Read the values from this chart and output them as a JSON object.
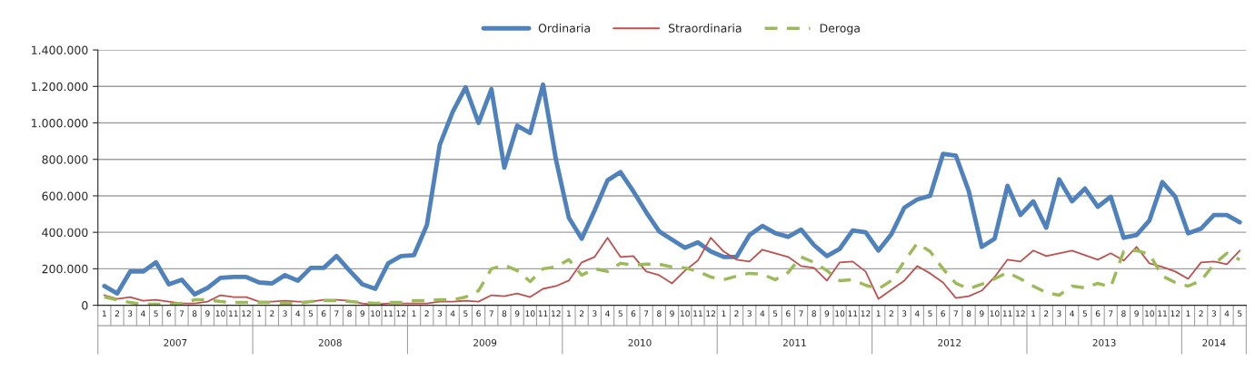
{
  "chart_data": {
    "type": "line",
    "categories": [
      "1",
      "2",
      "3",
      "4",
      "5",
      "6",
      "7",
      "8",
      "9",
      "10",
      "11",
      "12",
      "1",
      "2",
      "3",
      "4",
      "5",
      "6",
      "7",
      "8",
      "9",
      "10",
      "11",
      "12",
      "1",
      "2",
      "3",
      "4",
      "5",
      "6",
      "7",
      "8",
      "9",
      "10",
      "11",
      "12",
      "1",
      "2",
      "3",
      "4",
      "5",
      "6",
      "7",
      "8",
      "9",
      "10",
      "11",
      "12",
      "1",
      "2",
      "3",
      "4",
      "5",
      "6",
      "7",
      "8",
      "9",
      "10",
      "11",
      "12",
      "1",
      "2",
      "3",
      "4",
      "5",
      "6",
      "7",
      "8",
      "9",
      "10",
      "11",
      "12",
      "1",
      "2",
      "3",
      "4",
      "5",
      "6",
      "7",
      "8",
      "9",
      "10",
      "11",
      "12",
      "1",
      "2",
      "3",
      "4",
      "5"
    ],
    "annotations": [
      "2007",
      "2008",
      "2009",
      "2010",
      "2011",
      "2012",
      "2013",
      "2014"
    ],
    "series": [
      {
        "name": "Ordinaria",
        "color": "#4f81bd",
        "line_style": "solid",
        "values": [
          105000,
          65000,
          185000,
          185000,
          235000,
          115000,
          140000,
          60000,
          95000,
          150000,
          155000,
          155000,
          125000,
          120000,
          165000,
          135000,
          205000,
          205000,
          270000,
          190000,
          115000,
          90000,
          230000,
          270000,
          275000,
          440000,
          880000,
          1060000,
          1195000,
          1000000,
          1185000,
          755000,
          985000,
          945000,
          1210000,
          800000,
          480000,
          365000,
          520000,
          685000,
          730000,
          625000,
          510000,
          405000,
          360000,
          315000,
          345000,
          295000,
          265000,
          265000,
          385000,
          435000,
          395000,
          375000,
          415000,
          330000,
          270000,
          310000,
          410000,
          400000,
          300000,
          390000,
          535000,
          580000,
          600000,
          830000,
          820000,
          625000,
          320000,
          365000,
          655000,
          495000,
          570000,
          425000,
          690000,
          570000,
          640000,
          540000,
          595000,
          370000,
          385000,
          465000,
          675000,
          595000,
          395000,
          420000,
          495000,
          495000,
          455000
        ]
      },
      {
        "name": "Straordinaria",
        "color": "#c0504d",
        "line_style": "solid",
        "values": [
          55000,
          35000,
          45000,
          25000,
          30000,
          20000,
          10000,
          10000,
          20000,
          55000,
          45000,
          45000,
          20000,
          20000,
          25000,
          20000,
          20000,
          30000,
          30000,
          25000,
          10000,
          5000,
          10000,
          10000,
          10000,
          10000,
          20000,
          20000,
          25000,
          20000,
          55000,
          50000,
          65000,
          45000,
          90000,
          105000,
          135000,
          235000,
          265000,
          370000,
          265000,
          270000,
          185000,
          165000,
          120000,
          190000,
          245000,
          370000,
          295000,
          250000,
          240000,
          305000,
          285000,
          265000,
          215000,
          205000,
          135000,
          235000,
          240000,
          185000,
          35000,
          85000,
          135000,
          215000,
          175000,
          125000,
          40000,
          50000,
          80000,
          155000,
          250000,
          240000,
          300000,
          270000,
          285000,
          300000,
          275000,
          250000,
          285000,
          245000,
          320000,
          230000,
          210000,
          185000,
          145000,
          235000,
          240000,
          225000,
          300000
        ]
      },
      {
        "name": "Deroga",
        "color": "#9bbb59",
        "line_style": "dashed",
        "values": [
          45000,
          30000,
          15000,
          5000,
          5000,
          5000,
          10000,
          30000,
          30000,
          20000,
          15000,
          15000,
          15000,
          15000,
          10000,
          10000,
          20000,
          25000,
          25000,
          20000,
          15000,
          10000,
          15000,
          15000,
          25000,
          25000,
          30000,
          30000,
          45000,
          80000,
          200000,
          220000,
          190000,
          130000,
          200000,
          210000,
          250000,
          165000,
          200000,
          185000,
          230000,
          220000,
          225000,
          225000,
          210000,
          205000,
          185000,
          155000,
          140000,
          160000,
          175000,
          170000,
          140000,
          180000,
          265000,
          235000,
          190000,
          135000,
          140000,
          110000,
          90000,
          135000,
          240000,
          340000,
          295000,
          200000,
          120000,
          90000,
          115000,
          145000,
          180000,
          145000,
          105000,
          70000,
          55000,
          105000,
          95000,
          120000,
          100000,
          295000,
          300000,
          280000,
          160000,
          125000,
          105000,
          135000,
          225000,
          285000,
          250000
        ]
      }
    ],
    "ylim": [
      0,
      1400000
    ],
    "yticks": [
      {
        "value": 0,
        "label": "0"
      },
      {
        "value": 200000,
        "label": "200.000"
      },
      {
        "value": 400000,
        "label": "400.000"
      },
      {
        "value": 600000,
        "label": "600.000"
      },
      {
        "value": 800000,
        "label": "800.000"
      },
      {
        "value": 1000000,
        "label": "1.000.000"
      },
      {
        "value": 1200000,
        "label": "1.200.000"
      },
      {
        "value": 1400000,
        "label": "1.400.000"
      }
    ],
    "grid": "y",
    "legend": "top",
    "marker": "none"
  }
}
